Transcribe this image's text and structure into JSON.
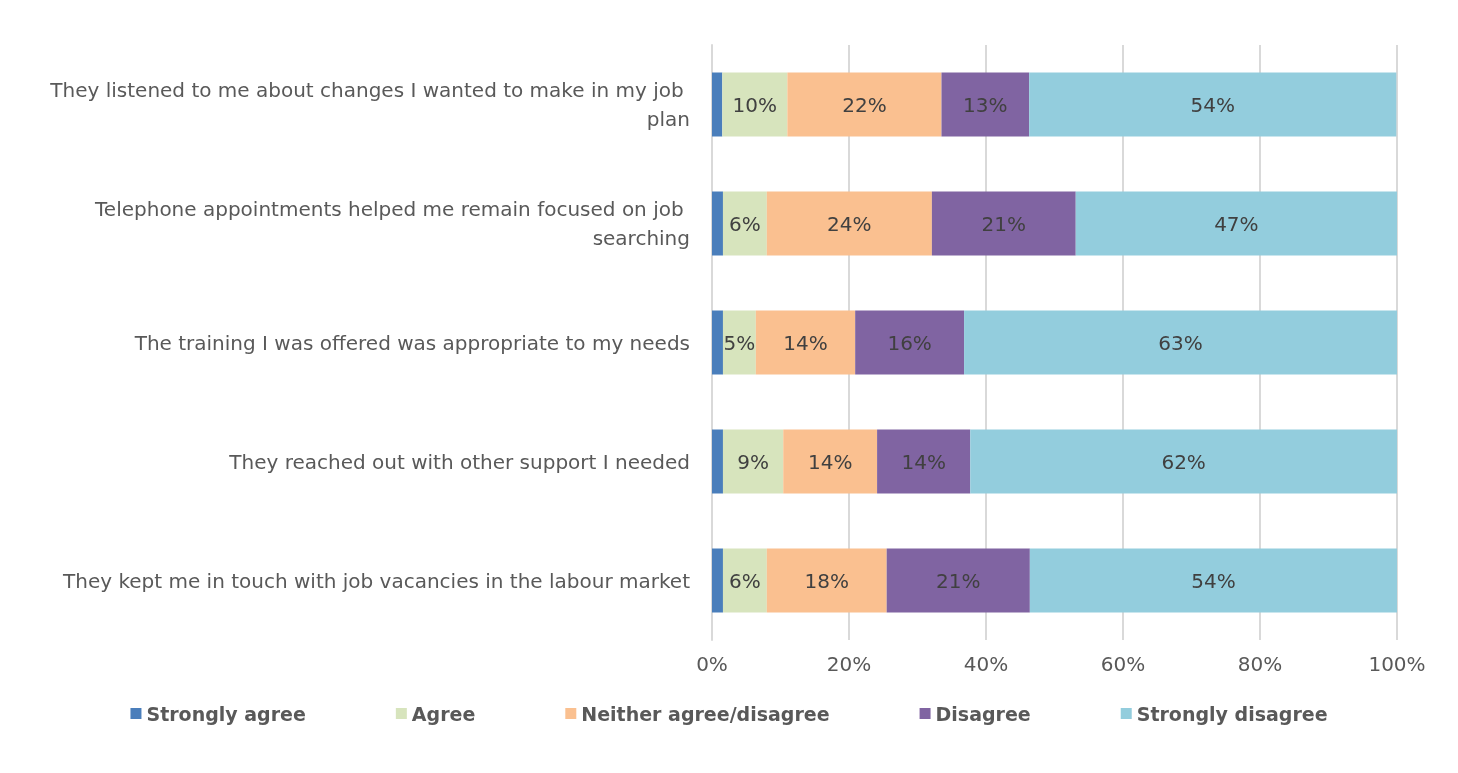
{
  "chart_data": {
    "type": "bar",
    "orientation": "horizontal",
    "stacked": true,
    "categories": [
      "They listened to me about changes I wanted to make in my job plan",
      "Telephone appointments helped me remain focused on job searching",
      "The training I was offered was appropriate to my needs",
      "They reached out with other support I needed",
      "They kept me in touch with job vacancies in the labour market"
    ],
    "series": [
      {
        "name": "Strongly agree",
        "color": "#4a7ebb",
        "values": [
          1.5,
          1.6,
          1.6,
          1.6,
          1.6
        ]
      },
      {
        "name": "Agree",
        "color": "#d7e4bd",
        "values": [
          9.5,
          6.4,
          4.8,
          8.8,
          6.4
        ],
        "value_labels": [
          "10%",
          "6%",
          "5%",
          "9%",
          "6%"
        ]
      },
      {
        "name": "Neither agree/disagree",
        "color": "#fac090",
        "values": [
          22.5,
          24.1,
          14.5,
          13.7,
          17.5
        ],
        "value_labels": [
          "22%",
          "24%",
          "14%",
          "14%",
          "18%"
        ]
      },
      {
        "name": "Disagree",
        "color": "#8064a2",
        "values": [
          12.8,
          21,
          15.9,
          13.6,
          20.9
        ],
        "value_labels": [
          "13%",
          "21%",
          "16%",
          "14%",
          "21%"
        ]
      },
      {
        "name": "Strongly disagree",
        "color": "#93cddd",
        "values": [
          53.6,
          46.9,
          63.2,
          62.3,
          53.6
        ],
        "value_labels": [
          "54%",
          "47%",
          "63%",
          "62%",
          "54%"
        ]
      }
    ],
    "xlim": [
      0,
      100
    ],
    "xticks": [
      {
        "value": 0,
        "label": "0%"
      },
      {
        "value": 20,
        "label": "20%"
      },
      {
        "value": 40,
        "label": "40%"
      },
      {
        "value": 60,
        "label": "60%"
      },
      {
        "value": 80,
        "label": "80%"
      },
      {
        "value": 100,
        "label": "100%"
      }
    ],
    "grid": "x",
    "legend": "bottom"
  }
}
